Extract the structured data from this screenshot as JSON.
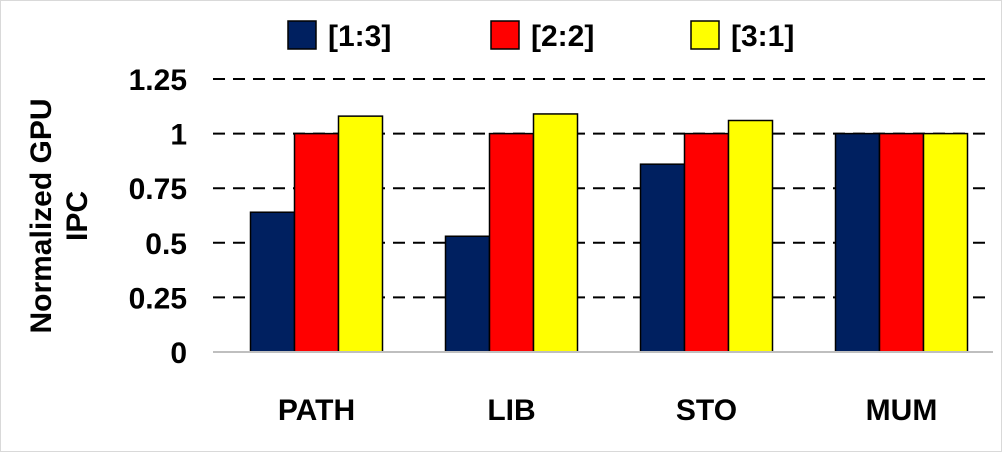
{
  "chart_data": {
    "type": "bar",
    "title": "",
    "xlabel": "",
    "ylabel": "Normalized GPU IPC",
    "ylabel_lines": [
      "Normalized GPU",
      "IPC"
    ],
    "categories": [
      "PATH",
      "LIB",
      "STO",
      "MUM"
    ],
    "series": [
      {
        "name": "[1:3]",
        "color": "#002060",
        "values": [
          0.64,
          0.53,
          0.86,
          1.0
        ]
      },
      {
        "name": "[2:2]",
        "color": "#ff0000",
        "values": [
          1.0,
          1.0,
          1.0,
          1.0
        ]
      },
      {
        "name": "[3:1]",
        "color": "#ffff00",
        "values": [
          1.08,
          1.09,
          1.06,
          1.0
        ]
      }
    ],
    "ylim": [
      0,
      1.25
    ],
    "yticks": [
      0,
      0.25,
      0.5,
      0.75,
      1,
      1.25
    ],
    "ytick_labels": [
      "0",
      "0.25",
      "0.5",
      "0.75",
      "1",
      "1.25"
    ],
    "grid": "horizontal-dashed",
    "legend_position": "top-center"
  }
}
